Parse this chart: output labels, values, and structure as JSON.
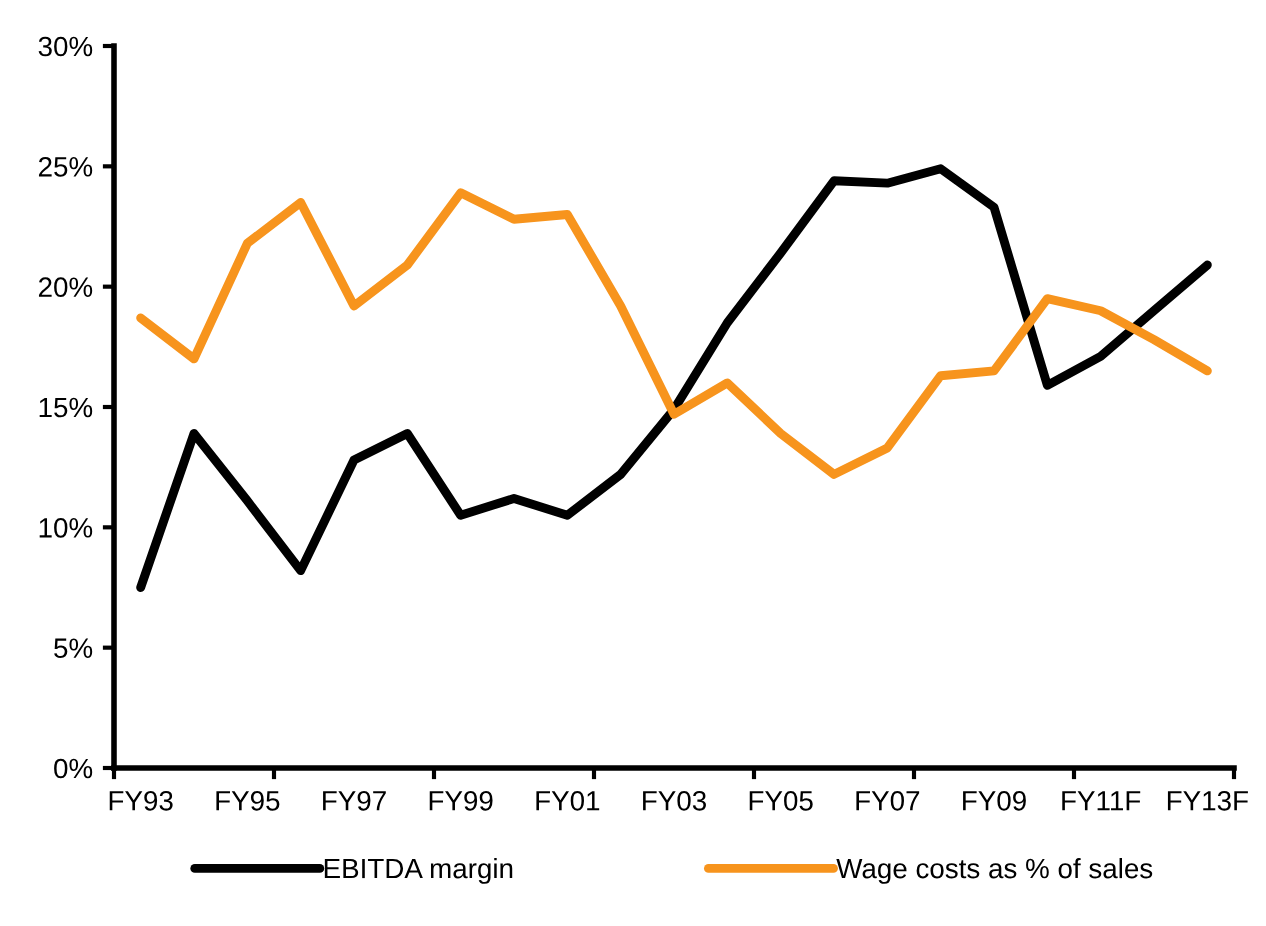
{
  "chart_data": {
    "type": "line",
    "categories": [
      "FY93",
      null,
      "FY95",
      null,
      "FY97",
      null,
      "FY99",
      null,
      "FY01",
      null,
      "FY03",
      null,
      "FY05",
      null,
      "FY07",
      null,
      "FY09",
      null,
      "FY11F",
      null,
      "FY13F"
    ],
    "series": [
      {
        "name": "EBITDA margin",
        "color": "#000000",
        "values": [
          7.5,
          13.9,
          11.1,
          8.2,
          12.8,
          13.9,
          10.5,
          11.2,
          10.5,
          12.2,
          14.9,
          18.5,
          21.4,
          24.4,
          24.3,
          24.9,
          23.3,
          15.9,
          17.1,
          19.0,
          20.9
        ]
      },
      {
        "name": "Wage costs as % of sales",
        "color": "#f7941d",
        "values": [
          18.7,
          17.0,
          21.8,
          23.5,
          19.2,
          20.9,
          23.9,
          22.8,
          23.0,
          19.2,
          14.7,
          16.0,
          13.9,
          12.2,
          13.3,
          16.3,
          16.5,
          19.5,
          19.0,
          17.8,
          16.5
        ]
      }
    ],
    "ylim": [
      0,
      30
    ],
    "yticks": [
      {
        "value": 0,
        "label": "0%"
      },
      {
        "value": 5,
        "label": "5%"
      },
      {
        "value": 10,
        "label": "10%"
      },
      {
        "value": 15,
        "label": "15%"
      },
      {
        "value": 20,
        "label": "20%"
      },
      {
        "value": 25,
        "label": "25%"
      },
      {
        "value": 30,
        "label": "30%"
      }
    ],
    "grid": false,
    "legend": "bottom",
    "marker": "none",
    "line_style": "solid"
  }
}
